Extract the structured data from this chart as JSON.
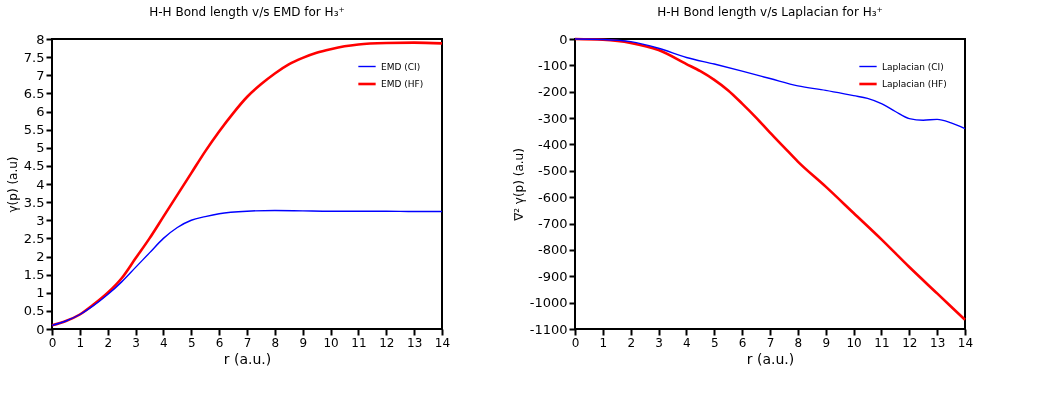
{
  "chart_data": [
    {
      "type": "line",
      "title": "H-H Bond length v/s EMD for H₃⁺",
      "xlabel": "r (a.u.)",
      "ylabel": "γ(p) (a.u)",
      "xlim": [
        0,
        14
      ],
      "xticks": [
        0,
        1,
        2,
        3,
        4,
        5,
        6,
        7,
        8,
        9,
        10,
        11,
        12,
        13,
        14
      ],
      "ylim": [
        0,
        8
      ],
      "yticks": [
        0,
        0.5,
        1,
        1.5,
        2,
        2.5,
        3,
        3.5,
        4,
        4.5,
        5,
        5.5,
        6,
        6.5,
        7,
        7.5,
        8
      ],
      "grid": false,
      "legend": "top right",
      "line_style": "solid",
      "series": [
        {
          "name": "EMD (CI)",
          "color": "#0000ff",
          "x": [
            0,
            0.5,
            1,
            1.5,
            2,
            2.5,
            3,
            3.5,
            4,
            4.5,
            5,
            5.5,
            6,
            7,
            8,
            9,
            10,
            11,
            12,
            13,
            14
          ],
          "values": [
            0.1,
            0.22,
            0.4,
            0.65,
            0.95,
            1.3,
            1.7,
            2.1,
            2.5,
            2.8,
            3.0,
            3.1,
            3.18,
            3.25,
            3.27,
            3.26,
            3.25,
            3.25,
            3.25,
            3.24,
            3.24
          ]
        },
        {
          "name": "EMD (HF)",
          "color": "#ff0000",
          "x": [
            0,
            0.5,
            1,
            1.5,
            2,
            2.5,
            3,
            3.5,
            4,
            4.5,
            5,
            5.5,
            6,
            6.5,
            7,
            7.5,
            8,
            8.5,
            9,
            9.5,
            10,
            10.5,
            11,
            12,
            13,
            14
          ],
          "values": [
            0.1,
            0.22,
            0.4,
            0.68,
            1.0,
            1.4,
            1.95,
            2.5,
            3.1,
            3.7,
            4.3,
            4.9,
            5.45,
            5.95,
            6.4,
            6.75,
            7.05,
            7.3,
            7.48,
            7.62,
            7.72,
            7.8,
            7.85,
            7.89,
            7.9,
            7.88
          ]
        }
      ]
    },
    {
      "type": "line",
      "title": "H-H Bond length v/s Laplacian for H₃⁺",
      "xlabel": "r (a.u.)",
      "ylabel": "∇² γ(p) (a.u)",
      "xlim": [
        0,
        14
      ],
      "xticks": [
        0,
        1,
        2,
        3,
        4,
        5,
        6,
        7,
        8,
        9,
        10,
        11,
        12,
        13,
        14
      ],
      "ylim": [
        -1100,
        0
      ],
      "yticks": [
        -1100,
        -1000,
        -900,
        -800,
        -700,
        -600,
        -500,
        -400,
        -300,
        -200,
        -100,
        0
      ],
      "grid": false,
      "legend": "top right",
      "line_style": "solid",
      "series": [
        {
          "name": "Laplacian (CI)",
          "color": "#0000ff",
          "x": [
            0,
            1,
            2,
            3,
            4,
            5,
            6,
            7,
            8,
            9,
            10,
            10.5,
            11,
            11.5,
            12,
            12.5,
            13,
            13.5,
            14
          ],
          "values": [
            0,
            -2,
            -10,
            -35,
            -70,
            -95,
            -122,
            -150,
            -178,
            -195,
            -215,
            -225,
            -245,
            -275,
            -302,
            -308,
            -305,
            -318,
            -340
          ]
        },
        {
          "name": "Laplacian (HF)",
          "color": "#ff0000",
          "x": [
            0,
            1,
            2,
            3,
            4,
            4.5,
            5,
            5.5,
            6,
            6.5,
            7,
            7.5,
            8,
            9,
            10,
            11,
            12,
            13,
            14
          ],
          "values": [
            0,
            -3,
            -15,
            -42,
            -95,
            -122,
            -155,
            -195,
            -245,
            -298,
            -355,
            -410,
            -465,
            -560,
            -660,
            -760,
            -865,
            -965,
            -1065
          ]
        }
      ]
    }
  ]
}
